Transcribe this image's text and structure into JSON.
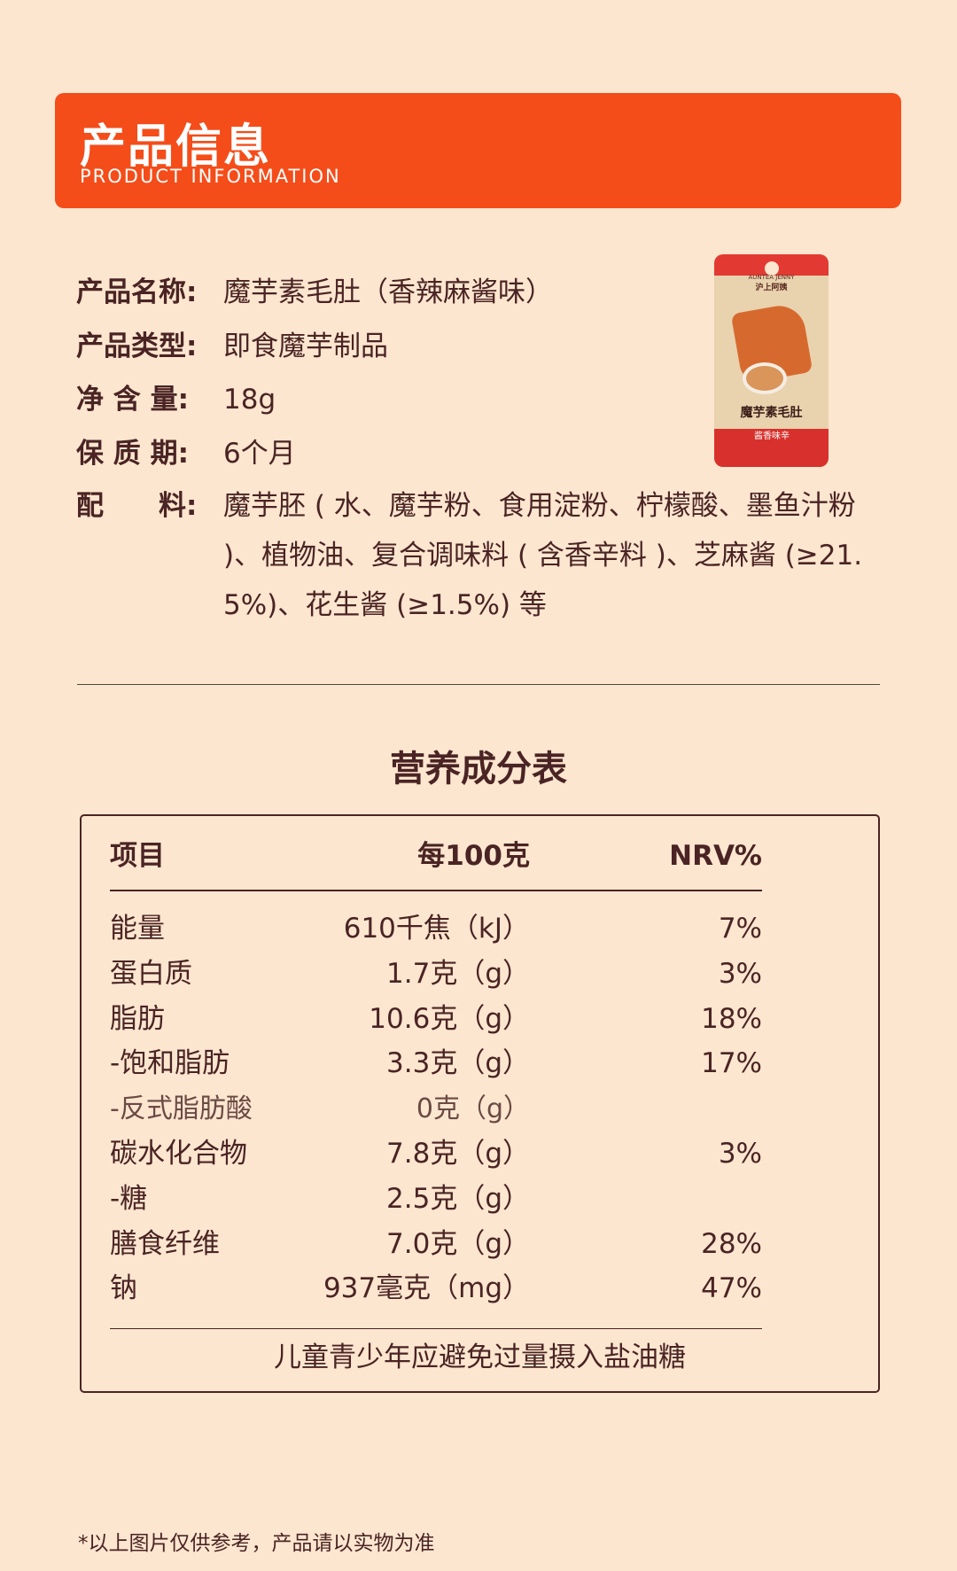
{
  "header": {
    "title": "产品信息",
    "subtitle": "PRODUCT INFORMATION"
  },
  "info": [
    {
      "label": "产品名称:",
      "value": "魔芋素毛肚（香辣麻酱味）"
    },
    {
      "label": "产品类型:",
      "value": "即食魔芋制品"
    },
    {
      "label": "净 含 量:",
      "value": "18g"
    },
    {
      "label": "保 质 期:",
      "value": "6个月"
    },
    {
      "label": "配　　料:",
      "value": "魔芋胚 ( 水、魔芋粉、食用淀粉、柠檬酸、墨鱼汁粉 )、植物油、复合调味料 ( 含香辛料 )、芝麻酱 (≥21.5%)、花生酱 (≥1.5%) 等"
    }
  ],
  "package": {
    "brand_en": "AUNTEA JENNY",
    "brand_cn": "沪上阿姨",
    "name": "魔芋素毛肚",
    "flavor": "酱香味辛"
  },
  "nutrition": {
    "title": "营养成分表",
    "headers": [
      "项目",
      "每100克",
      "NRV%"
    ],
    "rows": [
      [
        "能量",
        "610千焦（kJ）",
        "7%"
      ],
      [
        "蛋白质",
        "1.7克（g）",
        "3%"
      ],
      [
        "脂肪",
        "10.6克（g）",
        "18%"
      ],
      [
        "-饱和脂肪",
        "3.3克（g）",
        "17%"
      ],
      [
        "-反式脂肪酸",
        "0克（g）",
        ""
      ],
      [
        "碳水化合物",
        "7.8克（g）",
        "3%"
      ],
      [
        "-糖",
        "2.5克（g）",
        ""
      ],
      [
        "膳食纤维",
        "7.0克（g）",
        "28%"
      ],
      [
        "钠",
        "937毫克（mg）",
        "47%"
      ]
    ],
    "footer": "儿童青少年应避免过量摄入盐油糖"
  },
  "note": "*以上图片仅供参考，产品请以实物为准",
  "colors": {
    "accent": "#f44d1a",
    "background": "#fde6cf",
    "text": "#4a2424"
  }
}
